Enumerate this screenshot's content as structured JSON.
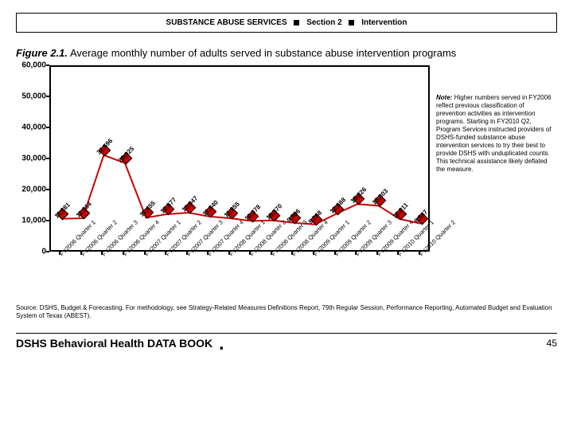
{
  "header": {
    "title_left": "SUBSTANCE ABUSE SERVICES",
    "section": "Section 2",
    "sub": "Intervention"
  },
  "figure": {
    "label": "Figure 2.1.",
    "title": "Average monthly number of adults served in substance abuse intervention programs"
  },
  "chart": {
    "type": "line",
    "ylim": [
      0,
      60000
    ],
    "ytick_step": 10000,
    "yticks": [
      "0",
      "10,000",
      "20,000",
      "30,000",
      "40,000",
      "50,000",
      "60,000"
    ],
    "xlabels": [
      "FY2006 Quarter 1",
      "FY2006 Quarter 2",
      "FY2006 Quarter 3",
      "FY2006 Quarter 4",
      "FY2007 Quarter 1",
      "FY2007 Quarter 2",
      "FY2007 Quarter 3",
      "FY2007 Quarter 4",
      "FY2008 Quarter 1",
      "FY2008 Quarter 2",
      "FY2008 Quarter 3",
      "FY2008 Quarter 4",
      "FY2009 Quarter 1",
      "FY2009 Quarter 2",
      "FY2009 Quarter 3",
      "FY2009 Quarter 4",
      "FY2010 Quarter 1",
      "FY2010 Quarter 2"
    ],
    "values": [
      11081,
      11264,
      31596,
      29025,
      11455,
      12577,
      13047,
      11840,
      11255,
      10378,
      10570,
      9806,
      9268,
      12688,
      15826,
      15303,
      11011,
      9537
    ],
    "value_labels": [
      "11,081",
      "11,264",
      "31,596",
      "29,025",
      "11,455",
      "12,577",
      "13,047",
      "11,840",
      "11,255",
      "10,378",
      "10,570",
      "9,806",
      "9,268",
      "12,688",
      "15,826",
      "15,303",
      "11,011",
      "9,537"
    ],
    "line_color": "#cc0000",
    "marker_fill": "#cc0000",
    "marker_border": "#000000",
    "marker_size": 9,
    "line_width": 2,
    "background_color": "#ffffff",
    "tick_mark_color": "#000000"
  },
  "note": {
    "label": "Note:",
    "text": "Higher numbers served in FY2006 reflect previous classification of prevention activities as intervention programs. Starting in FY2010 Q2, Program Services instructed providers of DSHS-funded substance abuse intervention services to try their best to provide DSHS with unduplicated counts. This technical assistance likely deflated the measure."
  },
  "source": "Source: DSHS, Budget & Forecasting. For methodology, see Strategy-Related Measures Definitions Report, 79th Regular Session, Performance Reporting, Automated Budget and Evaluation System of Texas (ABEST).",
  "footer": {
    "book": "DSHS Behavioral Health DATA BOOK",
    "page": "45"
  }
}
